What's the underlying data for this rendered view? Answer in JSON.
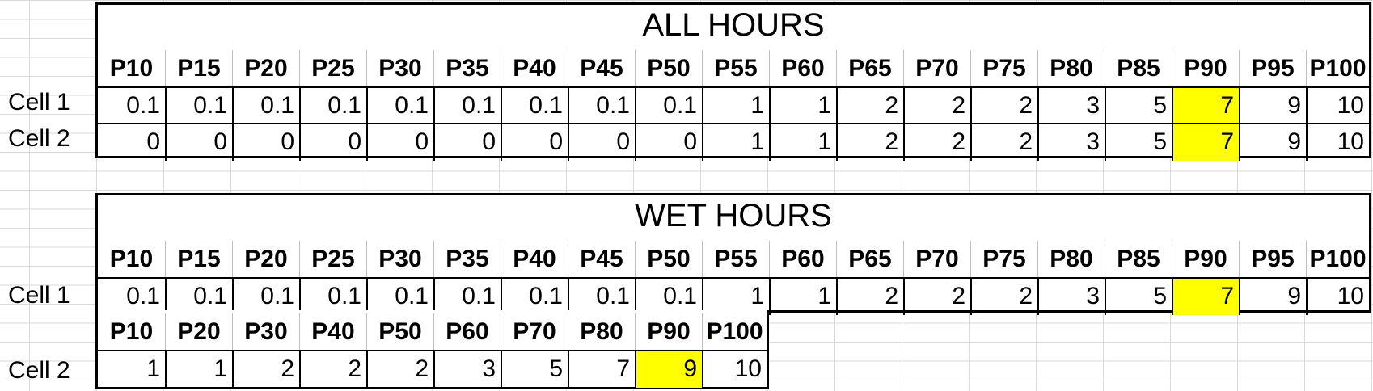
{
  "highlight_color": "#ffff00",
  "all_hours": {
    "title": "ALL HOURS",
    "headers": [
      "P10",
      "P15",
      "P20",
      "P25",
      "P30",
      "P35",
      "P40",
      "P45",
      "P50",
      "P55",
      "P60",
      "P65",
      "P70",
      "P75",
      "P80",
      "P85",
      "P90",
      "P95",
      "P100"
    ],
    "rows": [
      {
        "label": "Cell 1",
        "values": [
          "0.1",
          "0.1",
          "0.1",
          "0.1",
          "0.1",
          "0.1",
          "0.1",
          "0.1",
          "0.1",
          "1",
          "1",
          "2",
          "2",
          "2",
          "3",
          "5",
          "7",
          "9",
          "10"
        ]
      },
      {
        "label": "Cell 2",
        "values": [
          "0",
          "0",
          "0",
          "0",
          "0",
          "0",
          "0",
          "0",
          "0",
          "1",
          "1",
          "2",
          "2",
          "2",
          "3",
          "5",
          "7",
          "9",
          "10"
        ]
      }
    ],
    "highlight_index": 16
  },
  "wet_hours": {
    "title": "WET HOURS",
    "headers": [
      "P10",
      "P15",
      "P20",
      "P25",
      "P30",
      "P35",
      "P40",
      "P45",
      "P50",
      "P55",
      "P60",
      "P65",
      "P70",
      "P75",
      "P80",
      "P85",
      "P90",
      "P95",
      "P100"
    ],
    "rows": [
      {
        "label": "Cell 1",
        "values": [
          "0.1",
          "0.1",
          "0.1",
          "0.1",
          "0.1",
          "0.1",
          "0.1",
          "0.1",
          "0.1",
          "1",
          "1",
          "2",
          "2",
          "2",
          "3",
          "5",
          "7",
          "9",
          "10"
        ]
      }
    ],
    "highlight_index": 16,
    "cell2": {
      "label": "Cell 2",
      "headers": [
        "P10",
        "P20",
        "P30",
        "P40",
        "P50",
        "P60",
        "P70",
        "P80",
        "P90",
        "P100"
      ],
      "values": [
        "1",
        "1",
        "2",
        "2",
        "2",
        "3",
        "5",
        "7",
        "9",
        "10"
      ],
      "highlight_index": 8
    }
  }
}
